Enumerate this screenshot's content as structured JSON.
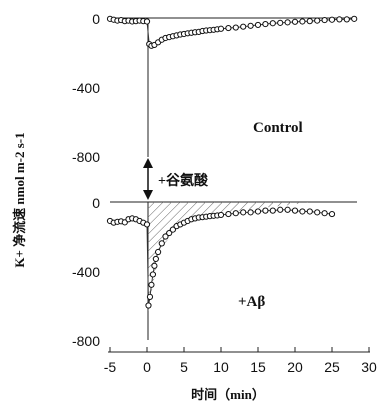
{
  "chart_data": {
    "type": "scatter",
    "xlabel": "时间（min）",
    "ylabel": "K+ 净流速 nmol m-2 s-1",
    "xlim": [
      -5,
      30
    ],
    "x_ticks": [
      "-5",
      "0",
      "5",
      "10",
      "15",
      "20",
      "25",
      "30"
    ],
    "annotation": "+谷氨酸",
    "panels": [
      {
        "label": "Control",
        "ylim": [
          -800,
          0
        ],
        "y_ticks": [
          "0",
          "-400",
          "-800"
        ],
        "series": [
          {
            "x": [
              -5.0,
              -4.5,
              -4.0,
              -3.5,
              -3.0,
              -2.5,
              -2.0,
              -1.5,
              -1.0,
              -0.5,
              0.0,
              0.3,
              0.6,
              1.0,
              1.5,
              2.0,
              2.5,
              3.0,
              3.5,
              4.0,
              4.5,
              5.0,
              5.5,
              6.0,
              6.5,
              7.0,
              7.5,
              8.0,
              8.5,
              9.0,
              9.5,
              10.0,
              11.0,
              12.0,
              13.0,
              14.0,
              15.0,
              16.0,
              17.0,
              18.0,
              19.0,
              20.0,
              21.0,
              22.0,
              23.0,
              24.0,
              25.0,
              26.0,
              27.0,
              28.0
            ],
            "y": [
              -5,
              -10,
              -15,
              -12,
              -18,
              -15,
              -20,
              -18,
              -15,
              -18,
              -20,
              -150,
              -160,
              -155,
              -140,
              -125,
              -115,
              -110,
              -105,
              -100,
              -95,
              -92,
              -88,
              -85,
              -82,
              -80,
              -75,
              -72,
              -70,
              -68,
              -65,
              -62,
              -58,
              -55,
              -50,
              -45,
              -40,
              -35,
              -30,
              -28,
              -25,
              -22,
              -20,
              -18,
              -15,
              -12,
              -10,
              -8,
              -8,
              -5
            ]
          }
        ]
      },
      {
        "label": "+Aβ",
        "ylim": [
          -800,
          0
        ],
        "y_ticks": [
          "0",
          "-400",
          "-800"
        ],
        "series": [
          {
            "x": [
              -5.0,
              -4.5,
              -4.0,
              -3.5,
              -3.0,
              -2.5,
              -2.0,
              -1.5,
              -1.0,
              -0.5,
              0.0,
              0.2,
              0.4,
              0.6,
              0.8,
              1.0,
              1.2,
              1.5,
              2.0,
              2.5,
              3.0,
              3.5,
              4.0,
              4.5,
              5.0,
              5.5,
              6.0,
              6.5,
              7.0,
              7.5,
              8.0,
              8.5,
              9.0,
              9.5,
              10.0,
              11.0,
              12.0,
              13.0,
              14.0,
              15.0,
              16.0,
              17.0,
              18.0,
              19.0,
              20.0,
              21.0,
              22.0,
              23.0,
              24.0,
              25.0
            ],
            "y": [
              -110,
              -120,
              -115,
              -112,
              -118,
              -100,
              -95,
              -100,
              -110,
              -120,
              -130,
              -600,
              -550,
              -480,
              -420,
              -370,
              -330,
              -290,
              -240,
              -200,
              -180,
              -160,
              -140,
              -130,
              -120,
              -110,
              -100,
              -95,
              -90,
              -88,
              -85,
              -82,
              -80,
              -78,
              -75,
              -70,
              -65,
              -60,
              -60,
              -55,
              -50,
              -50,
              -45,
              -45,
              -50,
              -55,
              -55,
              -60,
              -65,
              -70
            ]
          }
        ]
      }
    ]
  }
}
